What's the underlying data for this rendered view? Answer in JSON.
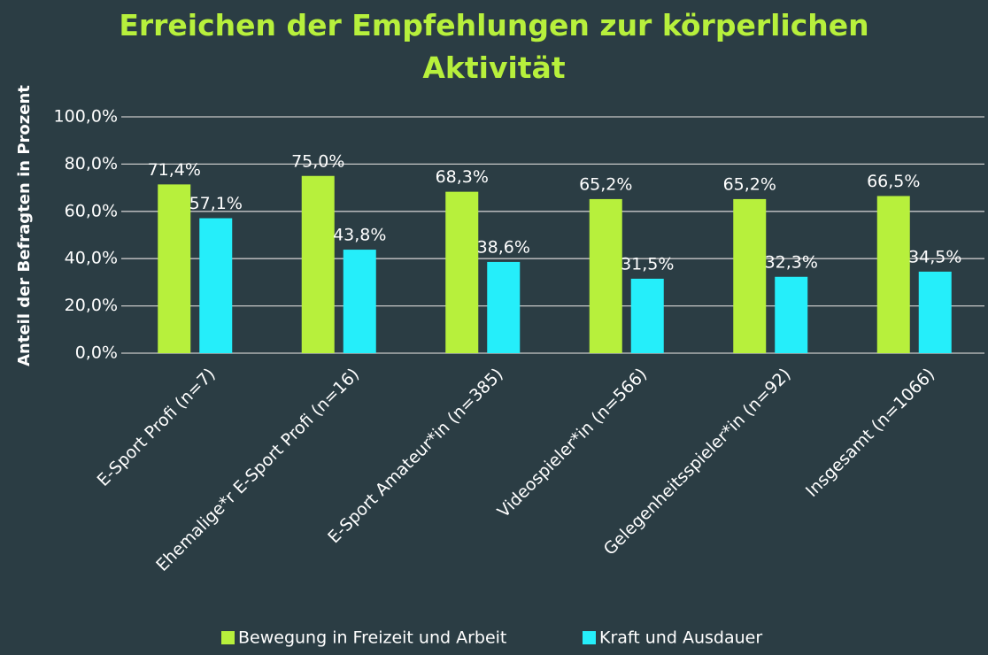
{
  "chart_data": {
    "type": "bar",
    "title": "Erreichen der Empfehlungen zur körperlichen Aktivität",
    "y_label": "Anteil der Befragten in Prozent",
    "categories": [
      "E-Sport Profi (n=7)",
      "Ehemalige*r E-Sport Profi (n=16)",
      "E-Sport Amateur*in (n=385)",
      "Videospieler*in (n=566)",
      "Gelegenheitsspieler*in (n=92)",
      "Insgesamt (n=1066)"
    ],
    "series": [
      {
        "name": "Bewegung in Freizeit und Arbeit",
        "color": "#b7f03c",
        "values": [
          71.4,
          75.0,
          68.3,
          65.2,
          65.2,
          66.5
        ],
        "value_labels": [
          "71,4%",
          "75,0%",
          "68,3%",
          "65,2%",
          "65,2%",
          "66,5%"
        ]
      },
      {
        "name": "Kraft und Ausdauer",
        "color": "#25eefa",
        "values": [
          57.1,
          43.8,
          38.6,
          31.5,
          32.3,
          34.5
        ],
        "value_labels": [
          "57,1%",
          "43,8%",
          "38,6%",
          "31,5%",
          "32,3%",
          "34,5%"
        ]
      }
    ],
    "ylim": [
      0,
      100
    ],
    "yticks": [
      {
        "value": 0,
        "label": "0,0%"
      },
      {
        "value": 20,
        "label": "20,0%"
      },
      {
        "value": 40,
        "label": "40,0%"
      },
      {
        "value": 60,
        "label": "60,0%"
      },
      {
        "value": 80,
        "label": "80,0%"
      },
      {
        "value": 100,
        "label": "100,0%"
      }
    ],
    "grid": true,
    "legend": "bottom"
  }
}
